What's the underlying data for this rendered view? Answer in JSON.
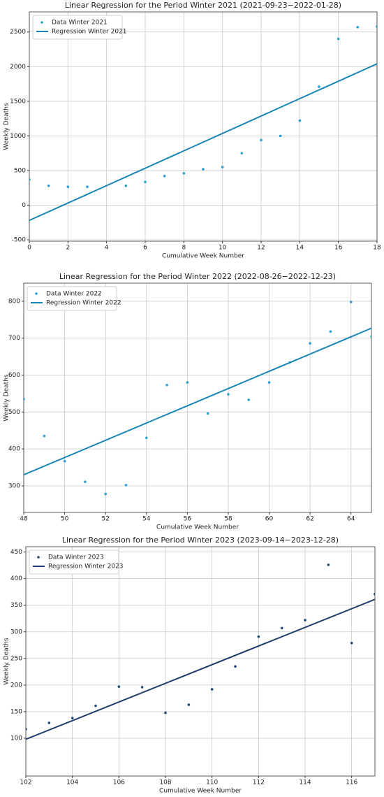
{
  "chart_data": [
    {
      "type": "scatter",
      "title": "Linear Regression for the Period Winter 2021 (2021-09-23−2022-01-28)",
      "xlabel": "Cumulative Week Number",
      "ylabel": "Weekly Deaths",
      "xlim": [
        0,
        18
      ],
      "ylim": [
        -520,
        2790
      ],
      "xticks": [
        0,
        2,
        4,
        6,
        8,
        10,
        12,
        14,
        16,
        18
      ],
      "yticks": [
        -500,
        0,
        500,
        1000,
        1500,
        2000,
        2500
      ],
      "grid": true,
      "legend": "upper left",
      "series": [
        {
          "name": "Data Winter 2021",
          "kind": "scatter",
          "color": "#2a9fd0",
          "x": [
            0,
            1,
            2,
            3,
            5,
            6,
            7,
            8,
            9,
            10,
            11,
            12,
            13,
            14,
            15,
            16,
            17,
            18
          ],
          "values": [
            370,
            280,
            265,
            265,
            280,
            335,
            420,
            460,
            520,
            550,
            750,
            940,
            1000,
            1220,
            1710,
            2400,
            2570,
            2580
          ]
        },
        {
          "name": "Regression Winter 2021",
          "kind": "line",
          "color": "#1a86b5",
          "x": [
            0,
            18
          ],
          "values": [
            -220,
            2040
          ]
        }
      ]
    },
    {
      "type": "scatter",
      "title": "Linear Regression for the Period Winter 2022 (2022-08-26−2022-12-23)",
      "xlabel": "Cumulative Week Number",
      "ylabel": "Weekly Deaths",
      "xlim": [
        48,
        65
      ],
      "ylim": [
        228,
        849
      ],
      "xticks": [
        48,
        50,
        52,
        54,
        56,
        58,
        60,
        62,
        64
      ],
      "yticks": [
        300,
        400,
        500,
        600,
        700,
        800
      ],
      "grid": true,
      "legend": "upper left",
      "series": [
        {
          "name": "Data Winter 2022",
          "kind": "scatter",
          "color": "#2a9fd0",
          "x": [
            48,
            49,
            50,
            51,
            52,
            53,
            54,
            55,
            56,
            57,
            58,
            59,
            60,
            61,
            62,
            63,
            64,
            65
          ],
          "values": [
            535,
            435,
            367,
            311,
            278,
            302,
            430,
            573,
            580,
            496,
            548,
            533,
            580,
            634,
            686,
            718,
            798,
            705
          ]
        },
        {
          "name": "Regression Winter 2022",
          "kind": "line",
          "color": "#1a86b5",
          "x": [
            48,
            65
          ],
          "values": [
            330,
            727
          ]
        }
      ]
    },
    {
      "type": "scatter",
      "title": "Linear Regression for the Period Winter 2023 (2023-09-14−2023-12-28)",
      "xlabel": "Cumulative Week Number",
      "ylabel": "Weekly Deaths",
      "xlim": [
        102,
        117
      ],
      "ylim": [
        29,
        460
      ],
      "xticks": [
        102,
        104,
        106,
        108,
        110,
        112,
        114,
        116
      ],
      "yticks": [
        100,
        150,
        200,
        250,
        300,
        350,
        400,
        450
      ],
      "grid": true,
      "legend": "upper left",
      "series": [
        {
          "name": "Data Winter 2023",
          "kind": "scatter",
          "color": "#1f4a78",
          "x": [
            102,
            103,
            104,
            105,
            106,
            107,
            108,
            109,
            110,
            111,
            112,
            113,
            114,
            115,
            116,
            117
          ],
          "values": [
            117,
            129,
            138,
            161,
            197,
            196,
            148,
            163,
            192,
            235,
            291,
            307,
            322,
            426,
            279,
            371
          ]
        },
        {
          "name": "Regression Winter 2023",
          "kind": "line",
          "color": "#1f3f6e",
          "x": [
            102,
            117
          ],
          "values": [
            98,
            361
          ]
        }
      ]
    }
  ]
}
